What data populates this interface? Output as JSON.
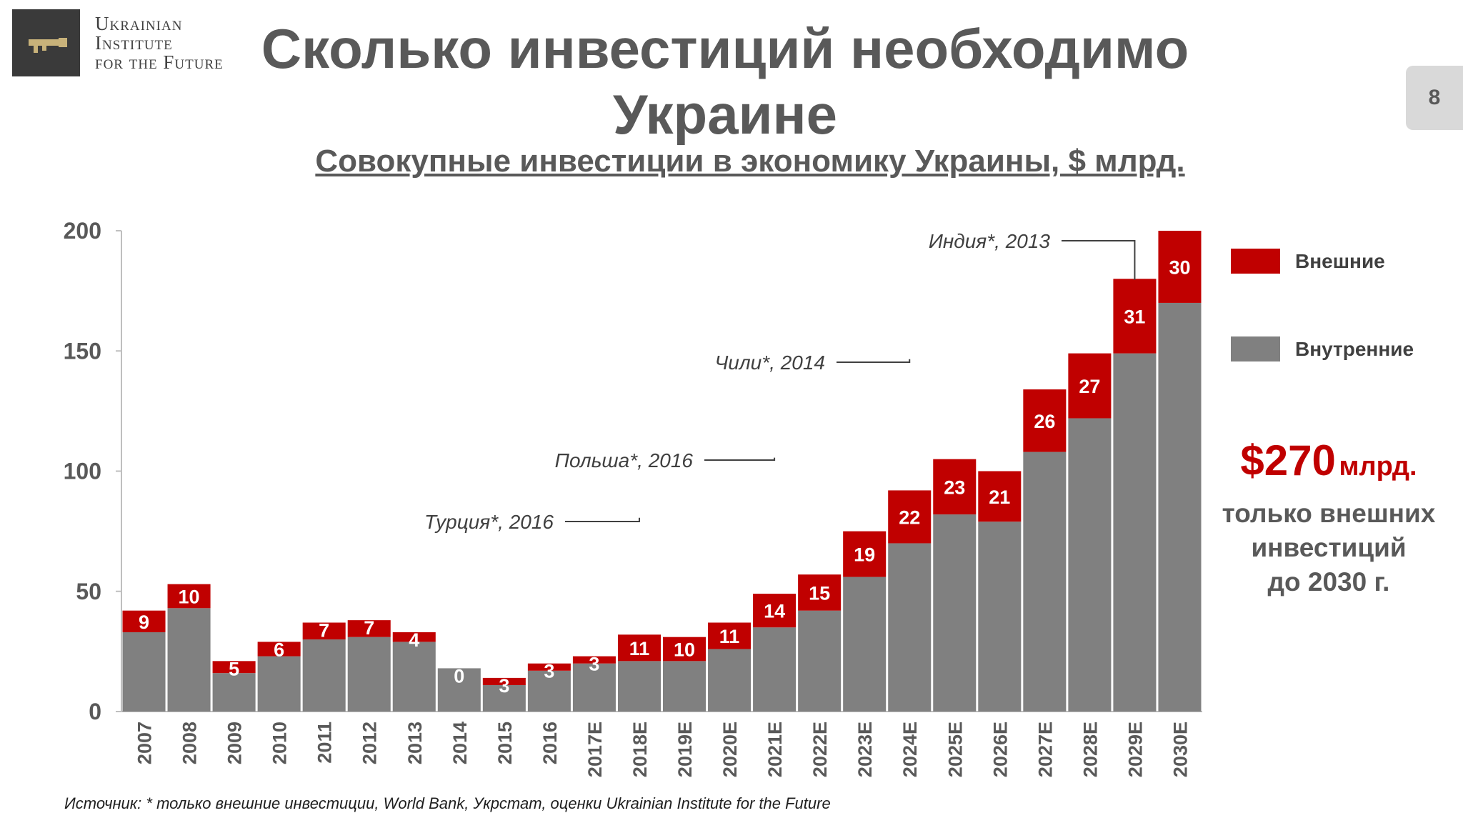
{
  "logo": {
    "lines": [
      "Ukrainian",
      "Institute",
      "for the Future"
    ],
    "icon": "key-icon"
  },
  "title": "Сколько инвестиций необходимо Украине",
  "subtitle": "Совокупные инвестиции в экономику Украины, $ млрд.",
  "page_number": "8",
  "callout": {
    "amount": "$270",
    "unit": "млрд.",
    "lines": [
      "только  внешних",
      "инвестиций",
      "до  2030 г."
    ]
  },
  "source": "Источник: * только внешние инвестиции, World Bank, Укрстат, оценки Ukrainian Institute for the Future",
  "colors": {
    "external": "#c00000",
    "internal": "#808080",
    "text": "#595959"
  },
  "chart_data": {
    "type": "bar",
    "stacked": true,
    "categories": [
      "2007",
      "2008",
      "2009",
      "2010",
      "2011",
      "2012",
      "2013",
      "2014",
      "2015",
      "2016",
      "2017E",
      "2018E",
      "2019E",
      "2020E",
      "2021E",
      "2022E",
      "2023E",
      "2024E",
      "2025E",
      "2026E",
      "2027E",
      "2028E",
      "2029E",
      "2030E"
    ],
    "series": [
      {
        "name": "Внутренние",
        "values": [
          33,
          43,
          16,
          23,
          30,
          31,
          29,
          18,
          11,
          17,
          20,
          21,
          21,
          26,
          35,
          42,
          56,
          70,
          82,
          79,
          108,
          122,
          149,
          170
        ]
      },
      {
        "name": "Внешние",
        "values": [
          9,
          10,
          5,
          6,
          7,
          7,
          4,
          0,
          3,
          3,
          3,
          11,
          10,
          11,
          14,
          15,
          19,
          22,
          23,
          21,
          26,
          27,
          31,
          30
        ]
      }
    ],
    "ylim": [
      0,
      200
    ],
    "yticks": [
      0,
      50,
      100,
      150,
      200
    ],
    "legend": {
      "position": "right",
      "items": [
        {
          "name": "Внешние"
        },
        {
          "name": "Внутренние"
        }
      ]
    },
    "annotations": [
      {
        "text": "Индия*, 2013",
        "value": 179,
        "category": "2029E"
      },
      {
        "text": "Чили*, 2014",
        "value": 146,
        "category": "2024E"
      },
      {
        "text": "Польша*, 2016",
        "value": 105,
        "category": "2021E"
      },
      {
        "text": "Турция*, 2016",
        "value": 80,
        "category": "2018E"
      }
    ]
  }
}
